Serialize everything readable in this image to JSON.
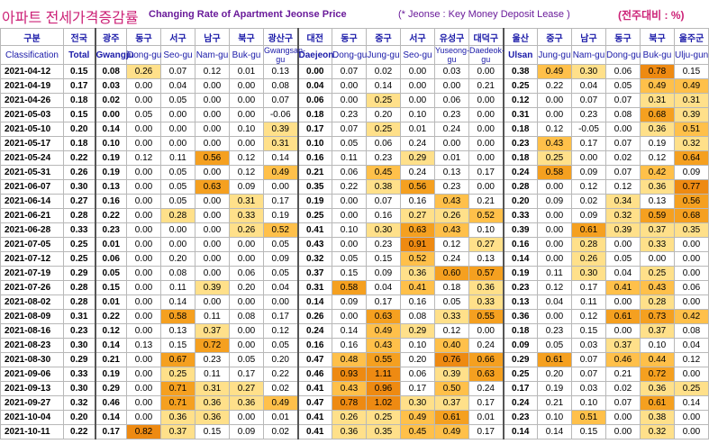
{
  "title": {
    "korean": "아파트 전세가격증감률",
    "english": "Changing Rate of Apartment Jeonse Price",
    "note": "(* Jeonse : Key Money Deposit Lease )",
    "unit": "(전주대비 : %)"
  },
  "header": {
    "classification_ko": "구분",
    "classification_en": "Classification",
    "columns": [
      {
        "ko": "전국",
        "en": "Total"
      },
      {
        "ko": "광주",
        "en": "Gwangju"
      },
      {
        "ko": "동구",
        "en": "Dong-gu"
      },
      {
        "ko": "서구",
        "en": "Seo-gu"
      },
      {
        "ko": "남구",
        "en": "Nam-gu"
      },
      {
        "ko": "북구",
        "en": "Buk-gu"
      },
      {
        "ko": "광산구",
        "en": "Gwangsan-gu"
      },
      {
        "ko": "대전",
        "en": "Daejeon"
      },
      {
        "ko": "동구",
        "en": "Dong-gu"
      },
      {
        "ko": "중구",
        "en": "Jung-gu"
      },
      {
        "ko": "서구",
        "en": "Seo-gu"
      },
      {
        "ko": "유성구",
        "en": "Yuseong-gu"
      },
      {
        "ko": "대덕구",
        "en": "Daedeok-gu"
      },
      {
        "ko": "울산",
        "en": "Ulsan"
      },
      {
        "ko": "중구",
        "en": "Jung-gu"
      },
      {
        "ko": "남구",
        "en": "Nam-gu"
      },
      {
        "ko": "동구",
        "en": "Dong-gu"
      },
      {
        "ko": "북구",
        "en": "Buk-gu"
      },
      {
        "ko": "울주군",
        "en": "Ulju-gun"
      }
    ]
  },
  "rows": [
    {
      "date": "2021-04-12",
      "values": [
        "0.15",
        "0.08",
        "0.26",
        "0.07",
        "0.12",
        "0.01",
        "0.13",
        "0.00",
        "0.07",
        "0.02",
        "0.00",
        "0.03",
        "0.00",
        "0.38",
        "0.49",
        "0.30",
        "0.06",
        "0.78",
        "0.15"
      ]
    },
    {
      "date": "2021-04-19",
      "values": [
        "0.17",
        "0.03",
        "0.00",
        "0.04",
        "0.00",
        "0.00",
        "0.08",
        "0.04",
        "0.00",
        "0.14",
        "0.00",
        "0.00",
        "0.21",
        "0.25",
        "0.22",
        "0.04",
        "0.05",
        "0.49",
        "0.49"
      ]
    },
    {
      "date": "2021-04-26",
      "values": [
        "0.18",
        "0.02",
        "0.00",
        "0.05",
        "0.00",
        "0.00",
        "0.07",
        "0.06",
        "0.00",
        "0.25",
        "0.00",
        "0.06",
        "0.00",
        "0.12",
        "0.00",
        "0.07",
        "0.07",
        "0.31",
        "0.31"
      ]
    },
    {
      "date": "2021-05-03",
      "values": [
        "0.15",
        "0.00",
        "0.05",
        "0.00",
        "0.00",
        "0.00",
        "-0.06",
        "0.18",
        "0.23",
        "0.20",
        "0.10",
        "0.23",
        "0.00",
        "0.31",
        "0.00",
        "0.23",
        "0.08",
        "0.68",
        "0.39"
      ]
    },
    {
      "date": "2021-05-10",
      "values": [
        "0.20",
        "0.14",
        "0.00",
        "0.00",
        "0.00",
        "0.10",
        "0.39",
        "0.17",
        "0.07",
        "0.25",
        "0.01",
        "0.24",
        "0.00",
        "0.18",
        "0.12",
        "-0.05",
        "0.00",
        "0.36",
        "0.51"
      ]
    },
    {
      "date": "2021-05-17",
      "values": [
        "0.18",
        "0.10",
        "0.00",
        "0.00",
        "0.00",
        "0.00",
        "0.31",
        "0.10",
        "0.05",
        "0.06",
        "0.24",
        "0.00",
        "0.00",
        "0.23",
        "0.43",
        "0.17",
        "0.07",
        "0.19",
        "0.32"
      ]
    },
    {
      "date": "2021-05-24",
      "values": [
        "0.22",
        "0.19",
        "0.12",
        "0.11",
        "0.56",
        "0.12",
        "0.14",
        "0.16",
        "0.11",
        "0.23",
        "0.29",
        "0.01",
        "0.00",
        "0.18",
        "0.25",
        "0.00",
        "0.02",
        "0.12",
        "0.64"
      ]
    },
    {
      "date": "2021-05-31",
      "values": [
        "0.26",
        "0.19",
        "0.00",
        "0.05",
        "0.00",
        "0.12",
        "0.49",
        "0.21",
        "0.06",
        "0.45",
        "0.24",
        "0.13",
        "0.17",
        "0.24",
        "0.58",
        "0.09",
        "0.07",
        "0.42",
        "0.09"
      ]
    },
    {
      "date": "2021-06-07",
      "values": [
        "0.30",
        "0.13",
        "0.00",
        "0.05",
        "0.63",
        "0.09",
        "0.00",
        "0.35",
        "0.22",
        "0.38",
        "0.56",
        "0.23",
        "0.00",
        "0.28",
        "0.00",
        "0.12",
        "0.12",
        "0.36",
        "0.77"
      ]
    },
    {
      "date": "2021-06-14",
      "values": [
        "0.27",
        "0.16",
        "0.00",
        "0.05",
        "0.00",
        "0.31",
        "0.17",
        "0.19",
        "0.00",
        "0.07",
        "0.16",
        "0.43",
        "0.21",
        "0.20",
        "0.09",
        "0.02",
        "0.34",
        "0.13",
        "0.56"
      ]
    },
    {
      "date": "2021-06-21",
      "values": [
        "0.28",
        "0.22",
        "0.00",
        "0.28",
        "0.00",
        "0.33",
        "0.19",
        "0.25",
        "0.00",
        "0.16",
        "0.27",
        "0.26",
        "0.52",
        "0.33",
        "0.00",
        "0.09",
        "0.32",
        "0.59",
        "0.68"
      ]
    },
    {
      "date": "2021-06-28",
      "values": [
        "0.33",
        "0.23",
        "0.00",
        "0.00",
        "0.00",
        "0.26",
        "0.52",
        "0.41",
        "0.10",
        "0.30",
        "0.63",
        "0.43",
        "0.10",
        "0.39",
        "0.00",
        "0.61",
        "0.39",
        "0.37",
        "0.35"
      ]
    },
    {
      "date": "2021-07-05",
      "values": [
        "0.25",
        "0.01",
        "0.00",
        "0.00",
        "0.00",
        "0.00",
        "0.05",
        "0.43",
        "0.00",
        "0.23",
        "0.91",
        "0.12",
        "0.27",
        "0.16",
        "0.00",
        "0.28",
        "0.00",
        "0.33",
        "0.00"
      ]
    },
    {
      "date": "2021-07-12",
      "values": [
        "0.25",
        "0.06",
        "0.00",
        "0.20",
        "0.00",
        "0.00",
        "0.09",
        "0.32",
        "0.05",
        "0.15",
        "0.52",
        "0.24",
        "0.13",
        "0.14",
        "0.00",
        "0.26",
        "0.05",
        "0.00",
        "0.00"
      ]
    },
    {
      "date": "2021-07-19",
      "values": [
        "0.29",
        "0.05",
        "0.00",
        "0.08",
        "0.00",
        "0.06",
        "0.05",
        "0.37",
        "0.15",
        "0.09",
        "0.36",
        "0.60",
        "0.57",
        "0.19",
        "0.11",
        "0.30",
        "0.04",
        "0.25",
        "0.00"
      ]
    },
    {
      "date": "2021-07-26",
      "values": [
        "0.28",
        "0.15",
        "0.00",
        "0.11",
        "0.39",
        "0.20",
        "0.04",
        "0.31",
        "0.58",
        "0.04",
        "0.41",
        "0.18",
        "0.36",
        "0.23",
        "0.12",
        "0.17",
        "0.41",
        "0.43",
        "0.06"
      ]
    },
    {
      "date": "2021-08-02",
      "values": [
        "0.28",
        "0.01",
        "0.00",
        "0.14",
        "0.00",
        "0.00",
        "0.00",
        "0.14",
        "0.09",
        "0.17",
        "0.16",
        "0.05",
        "0.33",
        "0.13",
        "0.04",
        "0.11",
        "0.00",
        "0.28",
        "0.00"
      ]
    },
    {
      "date": "2021-08-09",
      "values": [
        "0.31",
        "0.22",
        "0.00",
        "0.58",
        "0.11",
        "0.08",
        "0.17",
        "0.26",
        "0.00",
        "0.63",
        "0.08",
        "0.33",
        "0.55",
        "0.36",
        "0.00",
        "0.12",
        "0.61",
        "0.73",
        "0.42"
      ]
    },
    {
      "date": "2021-08-16",
      "values": [
        "0.23",
        "0.12",
        "0.00",
        "0.13",
        "0.37",
        "0.00",
        "0.12",
        "0.24",
        "0.14",
        "0.49",
        "0.29",
        "0.12",
        "0.00",
        "0.18",
        "0.23",
        "0.15",
        "0.00",
        "0.37",
        "0.08"
      ]
    },
    {
      "date": "2021-08-23",
      "values": [
        "0.30",
        "0.14",
        "0.13",
        "0.15",
        "0.72",
        "0.00",
        "0.05",
        "0.16",
        "0.16",
        "0.43",
        "0.10",
        "0.40",
        "0.24",
        "0.09",
        "0.05",
        "0.03",
        "0.37",
        "0.10",
        "0.04"
      ]
    },
    {
      "date": "2021-08-30",
      "values": [
        "0.29",
        "0.21",
        "0.00",
        "0.67",
        "0.23",
        "0.05",
        "0.20",
        "0.47",
        "0.48",
        "0.55",
        "0.20",
        "0.76",
        "0.66",
        "0.29",
        "0.61",
        "0.07",
        "0.46",
        "0.44",
        "0.12"
      ]
    },
    {
      "date": "2021-09-06",
      "values": [
        "0.33",
        "0.19",
        "0.00",
        "0.25",
        "0.11",
        "0.17",
        "0.22",
        "0.46",
        "0.93",
        "1.11",
        "0.06",
        "0.39",
        "0.63",
        "0.25",
        "0.20",
        "0.07",
        "0.21",
        "0.72",
        "0.00"
      ]
    },
    {
      "date": "2021-09-13",
      "values": [
        "0.30",
        "0.29",
        "0.00",
        "0.71",
        "0.31",
        "0.27",
        "0.02",
        "0.41",
        "0.43",
        "0.96",
        "0.17",
        "0.50",
        "0.24",
        "0.17",
        "0.19",
        "0.03",
        "0.02",
        "0.36",
        "0.25"
      ]
    },
    {
      "date": "2021-09-27",
      "values": [
        "0.32",
        "0.46",
        "0.00",
        "0.71",
        "0.36",
        "0.36",
        "0.49",
        "0.47",
        "0.78",
        "1.02",
        "0.30",
        "0.37",
        "0.17",
        "0.24",
        "0.21",
        "0.10",
        "0.07",
        "0.61",
        "0.14"
      ]
    },
    {
      "date": "2021-10-04",
      "values": [
        "0.20",
        "0.14",
        "0.00",
        "0.36",
        "0.36",
        "0.00",
        "0.01",
        "0.41",
        "0.26",
        "0.25",
        "0.49",
        "0.61",
        "0.01",
        "0.23",
        "0.10",
        "0.51",
        "0.00",
        "0.38",
        "0.00"
      ]
    },
    {
      "date": "2021-10-11",
      "values": [
        "0.22",
        "0.17",
        "0.82",
        "0.37",
        "0.15",
        "0.09",
        "0.02",
        "0.41",
        "0.36",
        "0.35",
        "0.45",
        "0.49",
        "0.17",
        "0.14",
        "0.14",
        "0.15",
        "0.00",
        "0.32",
        "0.00"
      ]
    }
  ],
  "colors": {
    "level1": "#fff3c4",
    "level2": "#ffe08a",
    "level3": "#ffc04a",
    "level4": "#f5a020",
    "level5": "#ee8a12",
    "header_text": "#1a1aa8",
    "title_text": "#cc2277"
  }
}
